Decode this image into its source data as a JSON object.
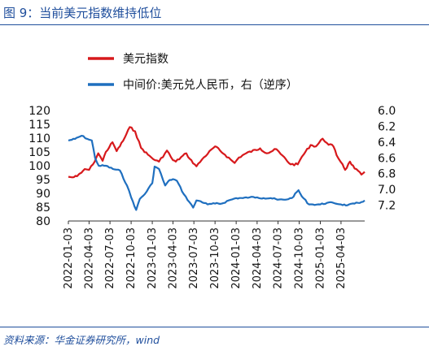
{
  "figure": {
    "title": "图 9：当前美元指数维持低位",
    "source": "资料来源：华金证券研究所，wind"
  },
  "colors": {
    "usd_index": "#d7191c",
    "cny": "#1f6fbf",
    "title": "#1f4e9c",
    "axis": "#333333"
  },
  "chart_data": {
    "type": "line",
    "title": "",
    "legend_position": "top",
    "grid": false,
    "x_ticks": [
      "2022-01-03",
      "2022-04-03",
      "2022-07-03",
      "2022-10-03",
      "2023-01-03",
      "2023-04-03",
      "2023-07-03",
      "2023-10-03",
      "2024-01-03",
      "2024-04-03",
      "2024-07-03",
      "2024-10-03",
      "2025-01-03",
      "2025-04-03"
    ],
    "xlim": [
      "2022-01-03",
      "2025-07-15"
    ],
    "y_left": {
      "lim": [
        80,
        120
      ],
      "ticks": [
        "120",
        "115",
        "110",
        "105",
        "100",
        "95",
        "90",
        "85",
        "80"
      ]
    },
    "y_right": {
      "lim": [
        6.0,
        7.4
      ],
      "inverted": true,
      "ticks": [
        "6.0",
        "6.2",
        "6.4",
        "6.6",
        "6.8",
        "7.0",
        "7.2"
      ]
    },
    "series": [
      {
        "name": "美元指数",
        "axis": "left",
        "color": "#d7191c",
        "points": [
          [
            "2022-01-03",
            96.0
          ],
          [
            "2022-01-20",
            95.8
          ],
          [
            "2022-02-10",
            96.2
          ],
          [
            "2022-03-01",
            97.5
          ],
          [
            "2022-03-15",
            98.8
          ],
          [
            "2022-04-03",
            98.5
          ],
          [
            "2022-04-20",
            100.5
          ],
          [
            "2022-05-13",
            104.5
          ],
          [
            "2022-06-01",
            101.8
          ],
          [
            "2022-06-15",
            105.0
          ],
          [
            "2022-07-14",
            108.5
          ],
          [
            "2022-08-01",
            105.3
          ],
          [
            "2022-08-29",
            109.0
          ],
          [
            "2022-09-27",
            114.0
          ],
          [
            "2022-10-20",
            112.5
          ],
          [
            "2022-11-15",
            106.5
          ],
          [
            "2022-12-15",
            104.0
          ],
          [
            "2023-01-15",
            102.0
          ],
          [
            "2023-02-01",
            101.5
          ],
          [
            "2023-03-08",
            105.5
          ],
          [
            "2023-04-03",
            102.0
          ],
          [
            "2023-04-15",
            101.5
          ],
          [
            "2023-05-31",
            104.5
          ],
          [
            "2023-06-15",
            102.5
          ],
          [
            "2023-07-14",
            99.8
          ],
          [
            "2023-08-15",
            103.0
          ],
          [
            "2023-10-03",
            107.0
          ],
          [
            "2023-11-15",
            104.0
          ],
          [
            "2023-12-27",
            101.0
          ],
          [
            "2024-01-15",
            103.0
          ],
          [
            "2024-02-15",
            104.5
          ],
          [
            "2024-04-16",
            106.3
          ],
          [
            "2024-05-15",
            104.5
          ],
          [
            "2024-06-26",
            106.0
          ],
          [
            "2024-07-15",
            104.2
          ],
          [
            "2024-08-27",
            100.5
          ],
          [
            "2024-09-27",
            100.5
          ],
          [
            "2024-10-15",
            103.3
          ],
          [
            "2024-11-22",
            107.5
          ],
          [
            "2024-12-15",
            107.0
          ],
          [
            "2025-01-13",
            109.8
          ],
          [
            "2025-02-01",
            108.2
          ],
          [
            "2025-03-01",
            107.0
          ],
          [
            "2025-03-15",
            103.8
          ],
          [
            "2025-04-10",
            100.5
          ],
          [
            "2025-04-21",
            98.5
          ],
          [
            "2025-05-12",
            101.5
          ],
          [
            "2025-06-01",
            99.0
          ],
          [
            "2025-07-01",
            96.8
          ],
          [
            "2025-07-15",
            97.8
          ]
        ]
      },
      {
        "name": "中间价:美元兑人民币，右（逆序）",
        "axis": "right",
        "color": "#1f6fbf",
        "points": [
          [
            "2022-01-03",
            6.38
          ],
          [
            "2022-02-01",
            6.36
          ],
          [
            "2022-03-01",
            6.32
          ],
          [
            "2022-04-03",
            6.37
          ],
          [
            "2022-04-15",
            6.38
          ],
          [
            "2022-04-29",
            6.6
          ],
          [
            "2022-05-15",
            6.7
          ],
          [
            "2022-06-15",
            6.7
          ],
          [
            "2022-07-15",
            6.74
          ],
          [
            "2022-08-15",
            6.76
          ],
          [
            "2022-09-15",
            6.95
          ],
          [
            "2022-10-03",
            7.1
          ],
          [
            "2022-10-25",
            7.26
          ],
          [
            "2022-11-10",
            7.12
          ],
          [
            "2022-12-01",
            7.06
          ],
          [
            "2023-01-03",
            6.92
          ],
          [
            "2023-01-13",
            6.71
          ],
          [
            "2023-02-01",
            6.74
          ],
          [
            "2023-02-28",
            6.95
          ],
          [
            "2023-03-20",
            6.88
          ],
          [
            "2023-04-03",
            6.87
          ],
          [
            "2023-04-20",
            6.89
          ],
          [
            "2023-05-20",
            7.06
          ],
          [
            "2023-06-30",
            7.23
          ],
          [
            "2023-07-14",
            7.14
          ],
          [
            "2023-08-01",
            7.15
          ],
          [
            "2023-09-01",
            7.19
          ],
          [
            "2023-10-03",
            7.18
          ],
          [
            "2023-11-01",
            7.18
          ],
          [
            "2023-12-01",
            7.14
          ],
          [
            "2024-01-03",
            7.11
          ],
          [
            "2024-02-01",
            7.11
          ],
          [
            "2024-03-01",
            7.1
          ],
          [
            "2024-04-03",
            7.1
          ],
          [
            "2024-05-01",
            7.11
          ],
          [
            "2024-06-01",
            7.11
          ],
          [
            "2024-07-01",
            7.13
          ],
          [
            "2024-08-01",
            7.13
          ],
          [
            "2024-09-01",
            7.11
          ],
          [
            "2024-09-30",
            7.01
          ],
          [
            "2024-10-15",
            7.09
          ],
          [
            "2024-11-15",
            7.19
          ],
          [
            "2024-12-01",
            7.19
          ],
          [
            "2025-01-03",
            7.19
          ],
          [
            "2025-02-01",
            7.17
          ],
          [
            "2025-03-01",
            7.17
          ],
          [
            "2025-04-03",
            7.19
          ],
          [
            "2025-05-01",
            7.2
          ],
          [
            "2025-06-01",
            7.18
          ],
          [
            "2025-07-01",
            7.16
          ],
          [
            "2025-07-15",
            7.14
          ]
        ]
      }
    ]
  }
}
